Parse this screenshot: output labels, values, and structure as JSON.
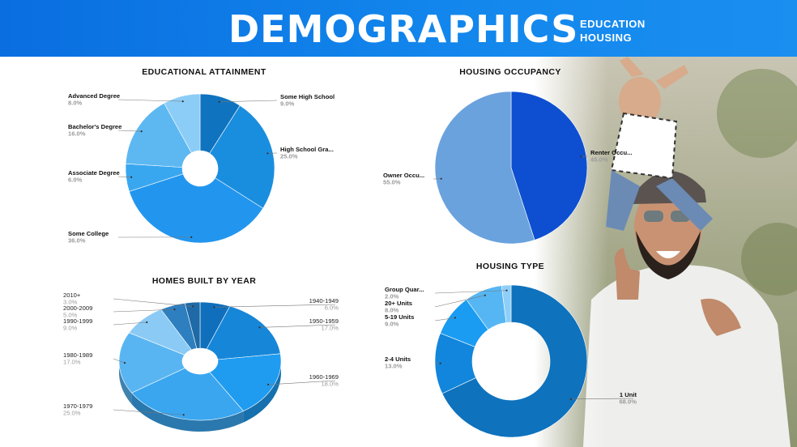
{
  "header": {
    "title": "DEMOGRAPHICS",
    "subtitle_1": "EDUCATION",
    "subtitle_2": "HOUSING",
    "background": "#0a7ae6"
  },
  "chart_data": [
    {
      "id": "educational-attainment",
      "type": "pie",
      "variant": "donut",
      "title": "EDUCATIONAL ATTAINMENT",
      "slices": [
        {
          "label": "Some High School",
          "value": 9.0,
          "value_label": "9.0%",
          "color": "#0f73bf"
        },
        {
          "label": "High School Gra...",
          "value": 25.0,
          "value_label": "25.0%",
          "color": "#1a8ede"
        },
        {
          "label": "Some College",
          "value": 36.0,
          "value_label": "36.0%",
          "color": "#2296ee"
        },
        {
          "label": "Associate Degree",
          "value": 6.0,
          "value_label": "6.0%",
          "color": "#39a7f0"
        },
        {
          "label": "Bachelor's Degree",
          "value": 16.0,
          "value_label": "16.0%",
          "color": "#5db8f2"
        },
        {
          "label": "Advanced Degree",
          "value": 8.0,
          "value_label": "8.0%",
          "color": "#8ccdf7"
        }
      ]
    },
    {
      "id": "housing-occupancy",
      "type": "pie",
      "title": "HOUSING OCCUPANCY",
      "slices": [
        {
          "label": "Renter Occu...",
          "value": 45.0,
          "value_label": "45.0%",
          "color": "#0d4fd0"
        },
        {
          "label": "Owner Occu...",
          "value": 55.0,
          "value_label": "55.0%",
          "color": "#6aa2de"
        }
      ]
    },
    {
      "id": "homes-built-by-year",
      "type": "pie",
      "variant": "3d-donut",
      "title": "HOMES BUILT BY YEAR",
      "slices": [
        {
          "label": "1940-1949",
          "value": 6.0,
          "value_label": "6.0%",
          "color": "#0f6fbc"
        },
        {
          "label": "1950-1959",
          "value": 17.0,
          "value_label": "17.0%",
          "color": "#1686d8"
        },
        {
          "label": "1960-1969",
          "value": 18.0,
          "value_label": "18.0%",
          "color": "#1f9cf0"
        },
        {
          "label": "1970-1979",
          "value": 25.0,
          "value_label": "25.0%",
          "color": "#3aa6f0"
        },
        {
          "label": "1980-1989",
          "value": 17.0,
          "value_label": "17.0%",
          "color": "#59b5f2"
        },
        {
          "label": "1990-1999",
          "value": 9.0,
          "value_label": "9.0%",
          "color": "#8acaf5"
        },
        {
          "label": "2000-2009",
          "value": 5.0,
          "value_label": "5.0%",
          "color": "#2e7fbf"
        },
        {
          "label": "2010+",
          "value": 3.0,
          "value_label": "3.0%",
          "color": "#1f6aa6"
        }
      ]
    },
    {
      "id": "housing-type",
      "type": "pie",
      "variant": "donut",
      "title": "HOUSING TYPE",
      "slices": [
        {
          "label": "1 Unit",
          "value": 68.0,
          "value_label": "68.0%",
          "color": "#0e72bd"
        },
        {
          "label": "2-4 Units",
          "value": 13.0,
          "value_label": "13.0%",
          "color": "#1186dc"
        },
        {
          "label": "5-19 Units",
          "value": 9.0,
          "value_label": "9.0%",
          "color": "#1a9cf2"
        },
        {
          "label": "20+ Units",
          "value": 8.0,
          "value_label": "8.0%",
          "color": "#56b6f3"
        },
        {
          "label": "Group Quar...",
          "value": 2.0,
          "value_label": "2.0%",
          "color": "#8fcff7"
        }
      ]
    }
  ],
  "photo": {
    "icon": "father-and-son-photo"
  }
}
